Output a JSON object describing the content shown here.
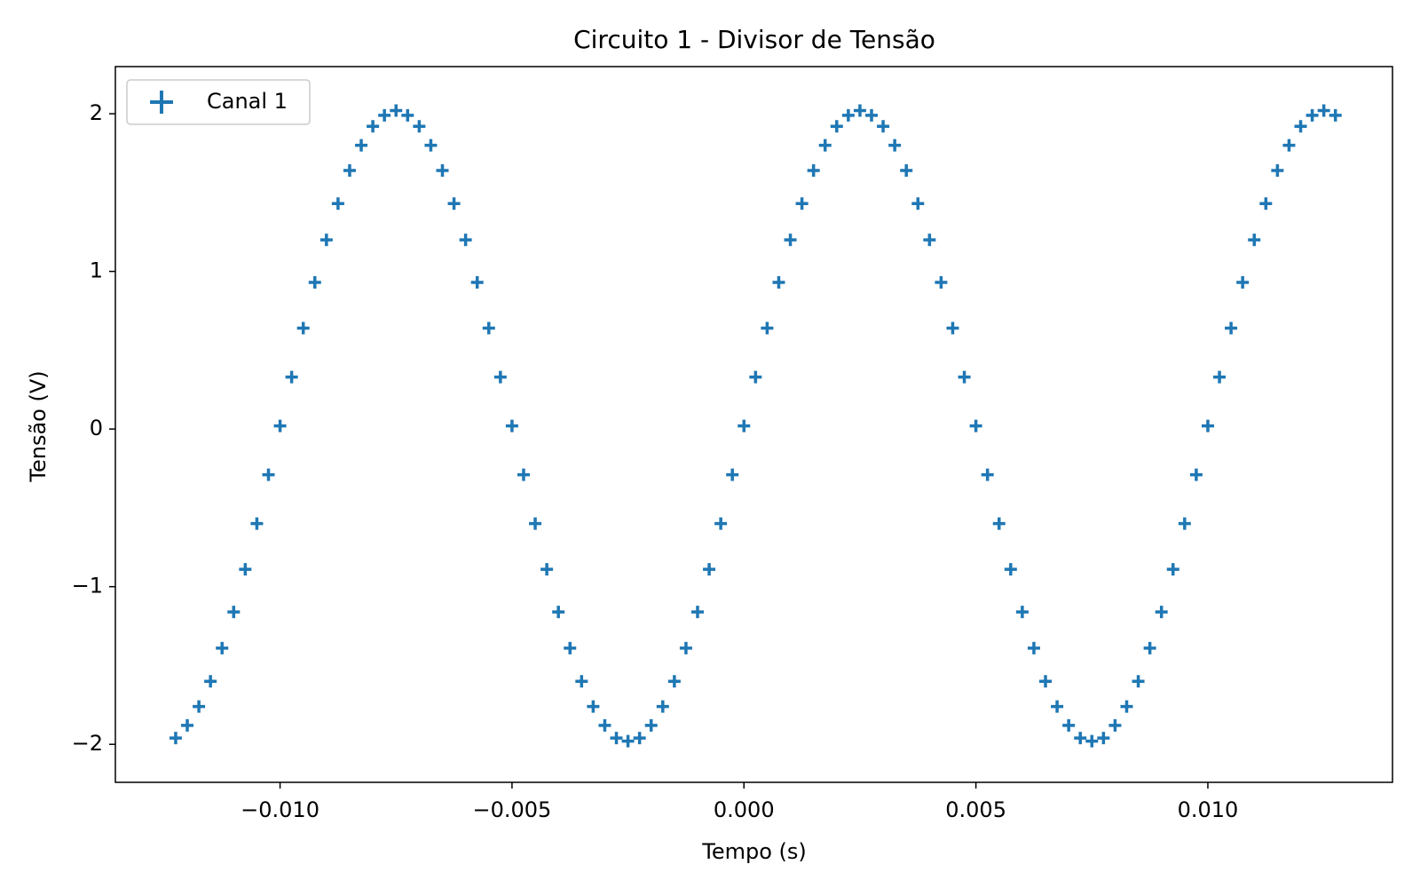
{
  "chart_data": {
    "type": "scatter",
    "title": "Circuito 1 - Divisor de Tensão",
    "x_label": "Tempo (s)",
    "y_label": "Tensão (V)",
    "x": [
      -0.01225,
      -0.012,
      -0.01175,
      -0.0115,
      -0.01125,
      -0.011,
      -0.01075,
      -0.0105,
      -0.01025,
      -0.01,
      -0.00975,
      -0.0095,
      -0.00925,
      -0.009,
      -0.00875,
      -0.0085,
      -0.00825,
      -0.008,
      -0.00775,
      -0.0075,
      -0.00725,
      -0.007,
      -0.00675,
      -0.0065,
      -0.00625,
      -0.006,
      -0.00575,
      -0.0055,
      -0.00525,
      -0.005,
      -0.00475,
      -0.0045,
      -0.00425,
      -0.004,
      -0.00375,
      -0.0035,
      -0.00325,
      -0.003,
      -0.00275,
      -0.0025,
      -0.00225,
      -0.002,
      -0.00175,
      -0.0015,
      -0.00125,
      -0.001,
      -0.00075,
      -0.0005,
      -0.00025,
      0,
      0.00025,
      0.0005,
      0.00075,
      0.001,
      0.00125,
      0.0015,
      0.00175,
      0.002,
      0.00225,
      0.0025,
      0.00275,
      0.003,
      0.00325,
      0.0035,
      0.00375,
      0.004,
      0.00425,
      0.0045,
      0.00475,
      0.005,
      0.00525,
      0.0055,
      0.00575,
      0.006,
      0.00625,
      0.0065,
      0.00675,
      0.007,
      0.00725,
      0.0075,
      0.00775,
      0.008,
      0.00825,
      0.0085,
      0.00875,
      0.009,
      0.00925,
      0.0095,
      0.00975,
      0.01,
      0.01025,
      0.0105,
      0.01075,
      0.011,
      0.01125,
      0.0115,
      0.01175,
      0.012,
      0.01225,
      0.0125,
      0.01275
    ],
    "series": [
      {
        "name": "Canal 1",
        "color": "#1f77b4",
        "values": [
          -1.96,
          -1.88,
          -1.76,
          -1.6,
          -1.39,
          -1.16,
          -0.89,
          -0.6,
          -0.29,
          0.02,
          0.33,
          0.64,
          0.93,
          1.2,
          1.43,
          1.64,
          1.8,
          1.92,
          1.99,
          2.02,
          1.99,
          1.92,
          1.8,
          1.64,
          1.43,
          1.2,
          0.93,
          0.64,
          0.33,
          0.02,
          -0.29,
          -0.6,
          -0.89,
          -1.16,
          -1.39,
          -1.6,
          -1.76,
          -1.88,
          -1.96,
          -1.98,
          -1.96,
          -1.88,
          -1.76,
          -1.6,
          -1.39,
          -1.16,
          -0.89,
          -0.6,
          -0.29,
          0.02,
          0.33,
          0.64,
          0.93,
          1.2,
          1.43,
          1.64,
          1.8,
          1.92,
          1.99,
          2.02,
          1.99,
          1.92,
          1.8,
          1.64,
          1.43,
          1.2,
          0.93,
          0.64,
          0.33,
          0.02,
          -0.29,
          -0.6,
          -0.89,
          -1.16,
          -1.39,
          -1.6,
          -1.76,
          -1.88,
          -1.96,
          -1.98,
          -1.96,
          -1.88,
          -1.76,
          -1.6,
          -1.39,
          -1.16,
          -0.89,
          -0.6,
          -0.29,
          0.02,
          0.33,
          0.64,
          0.93,
          1.2,
          1.43,
          1.64,
          1.8,
          1.92,
          1.99,
          2.02,
          1.99
        ]
      }
    ],
    "xlim": [
      -0.01355,
      0.01398
    ],
    "ylim": [
      -2.241,
      2.299
    ],
    "xticks": [
      {
        "value": -0.01,
        "label": "−0.010"
      },
      {
        "value": -0.005,
        "label": "−0.005"
      },
      {
        "value": 0,
        "label": "0.000"
      },
      {
        "value": 0.005,
        "label": "0.005"
      },
      {
        "value": 0.01,
        "label": "0.010"
      }
    ],
    "yticks": [
      {
        "value": -2,
        "label": "−2"
      },
      {
        "value": -1,
        "label": "−1"
      },
      0,
      1,
      2
    ],
    "grid": false,
    "legend": "upper left"
  }
}
